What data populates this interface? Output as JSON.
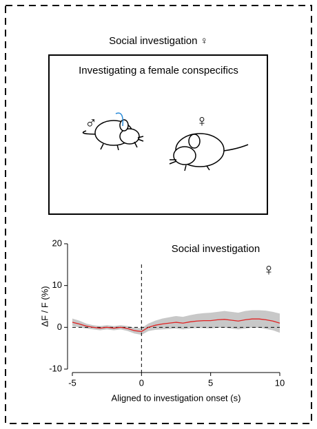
{
  "panel_title": "Social investigation ♀",
  "illustration": {
    "caption": "Investigating a female conspecifics",
    "male_label": "♂",
    "female_label": "♀"
  },
  "chart_data": {
    "type": "line",
    "annotation": "Social investigation",
    "annotation_symbol": "♀",
    "x_label": "Aligned to investigation onset (s)",
    "y_label": "ΔF / F (%)",
    "x": [
      -5,
      -4.5,
      -4,
      -3.5,
      -3,
      -2.5,
      -2,
      -1.5,
      -1,
      -0.5,
      0,
      0.5,
      1,
      1.5,
      2,
      2.5,
      3,
      3.5,
      4,
      4.5,
      5,
      5.5,
      6,
      6.5,
      7,
      7.5,
      8,
      8.5,
      9,
      9.5,
      10
    ],
    "series": [
      {
        "color": "#e02020",
        "band_color": "#c8c8c8",
        "values": [
          1.2,
          0.8,
          0.3,
          0,
          -0.2,
          0,
          -0.2,
          0,
          -0.3,
          -0.8,
          -1,
          0,
          0.5,
          0.8,
          1,
          1.2,
          1,
          1.3,
          1.5,
          1.6,
          1.6,
          1.8,
          1.9,
          1.7,
          1.5,
          1.8,
          2,
          2,
          1.8,
          1.5,
          1.0
        ],
        "error": [
          0.9,
          0.8,
          0.6,
          0.5,
          0.5,
          0.5,
          0.5,
          0.5,
          0.6,
          0.7,
          0.8,
          0.9,
          1.1,
          1.3,
          1.4,
          1.5,
          1.5,
          1.6,
          1.7,
          1.8,
          1.9,
          1.9,
          2,
          2,
          2,
          2.1,
          2.1,
          2.1,
          2.2,
          2.2,
          2.3
        ]
      }
    ],
    "xlim": [
      -5,
      10
    ],
    "xticks": [
      -5,
      0,
      5,
      10
    ],
    "ylim": [
      -10,
      20
    ],
    "yticks": [
      -10,
      0,
      10,
      20
    ],
    "reference_lines": {
      "x": 0,
      "y": 0
    }
  }
}
